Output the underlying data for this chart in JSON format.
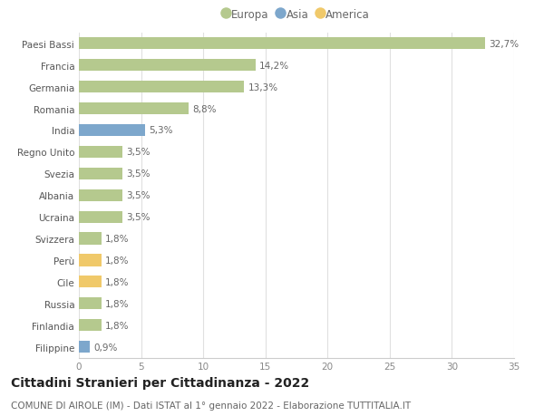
{
  "categories": [
    "Paesi Bassi",
    "Francia",
    "Germania",
    "Romania",
    "India",
    "Regno Unito",
    "Svezia",
    "Albania",
    "Ucraina",
    "Svizzera",
    "Perù",
    "Cile",
    "Russia",
    "Finlandia",
    "Filippine"
  ],
  "values": [
    32.7,
    14.2,
    13.3,
    8.8,
    5.3,
    3.5,
    3.5,
    3.5,
    3.5,
    1.8,
    1.8,
    1.8,
    1.8,
    1.8,
    0.9
  ],
  "labels": [
    "32,7%",
    "14,2%",
    "13,3%",
    "8,8%",
    "5,3%",
    "3,5%",
    "3,5%",
    "3,5%",
    "3,5%",
    "1,8%",
    "1,8%",
    "1,8%",
    "1,8%",
    "1,8%",
    "0,9%"
  ],
  "continent": [
    "Europa",
    "Europa",
    "Europa",
    "Europa",
    "Asia",
    "Europa",
    "Europa",
    "Europa",
    "Europa",
    "Europa",
    "America",
    "America",
    "Europa",
    "Europa",
    "Asia"
  ],
  "colors": {
    "Europa": "#b5c98e",
    "Asia": "#7da7cc",
    "America": "#f0c96a"
  },
  "title": "Cittadini Stranieri per Cittadinanza - 2022",
  "subtitle": "COMUNE DI AIROLE (IM) - Dati ISTAT al 1° gennaio 2022 - Elaborazione TUTTITALIA.IT",
  "xlim": [
    0,
    35
  ],
  "xticks": [
    0,
    5,
    10,
    15,
    20,
    25,
    30,
    35
  ],
  "background_color": "#ffffff",
  "grid_color": "#e0e0e0",
  "bar_height": 0.55,
  "title_fontsize": 10,
  "subtitle_fontsize": 7.5,
  "label_fontsize": 7.5,
  "tick_fontsize": 7.5,
  "legend_fontsize": 8.5
}
